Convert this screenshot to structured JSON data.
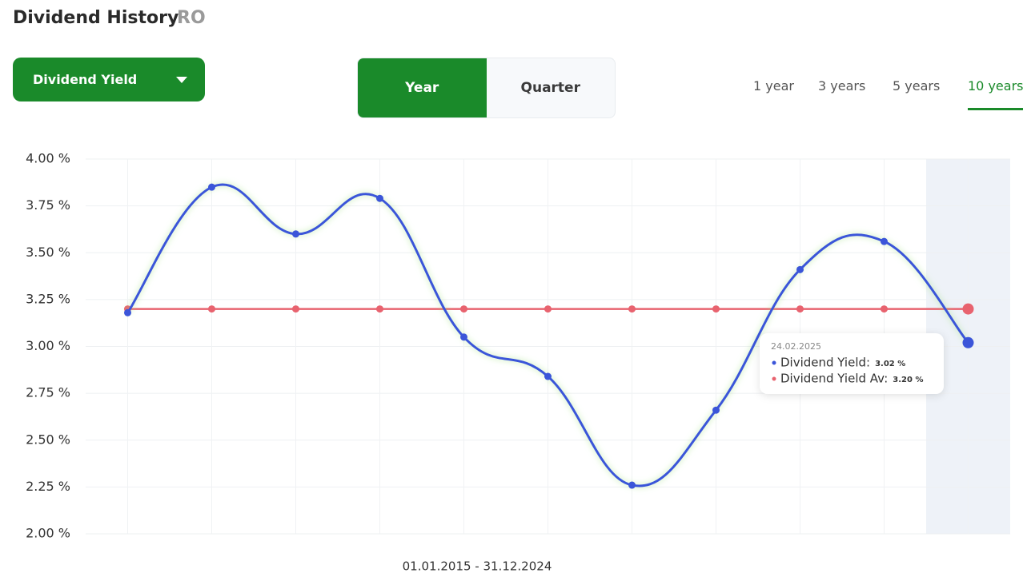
{
  "header": {
    "title": "Dividend History",
    "ticker": "RO"
  },
  "controls": {
    "metric": "Dividend Yield",
    "period_toggle": [
      "Year",
      "Quarter"
    ],
    "ranges": [
      "1 year",
      "3 years",
      "5 years",
      "10 years"
    ]
  },
  "chart_data": {
    "type": "line",
    "categories": [
      null,
      null,
      null,
      null,
      null,
      null,
      null,
      null,
      null,
      null,
      null
    ],
    "series": [
      {
        "name": "Dividend Yield:",
        "color": "#3b55d9",
        "values": [
          3.18,
          3.85,
          3.6,
          3.79,
          3.05,
          2.84,
          2.26,
          2.66,
          3.41,
          3.56,
          3.02
        ],
        "value_labels": [
          null,
          null,
          null,
          null,
          null,
          null,
          null,
          null,
          null,
          null,
          "3.02 %"
        ]
      },
      {
        "name": "Dividend Yield Av:",
        "color": "#e8636f",
        "values": [
          3.2,
          3.2,
          3.2,
          3.2,
          3.2,
          3.2,
          3.2,
          3.2,
          3.2,
          3.2,
          3.2
        ],
        "value_labels": [
          null,
          null,
          null,
          null,
          null,
          null,
          null,
          null,
          null,
          null,
          "3.20 %"
        ]
      }
    ],
    "ylim": [
      2,
      4
    ],
    "yticks": [
      {
        "value": 2,
        "label": "2.00 %"
      },
      {
        "value": 2.25,
        "label": "2.25 %"
      },
      {
        "value": 2.5,
        "label": "2.50 %"
      },
      {
        "value": 2.75,
        "label": "2.75 %"
      },
      {
        "value": 3,
        "label": "3.00 %"
      },
      {
        "value": 3.25,
        "label": "3.25 %"
      },
      {
        "value": 3.5,
        "label": "3.50 %"
      },
      {
        "value": 3.75,
        "label": "3.75 %"
      },
      {
        "value": 4,
        "label": "4.00 %"
      }
    ],
    "grid": true,
    "x_label": "01.01.2015 - 31.12.2024",
    "tooltip_date": "24.02.2025"
  }
}
